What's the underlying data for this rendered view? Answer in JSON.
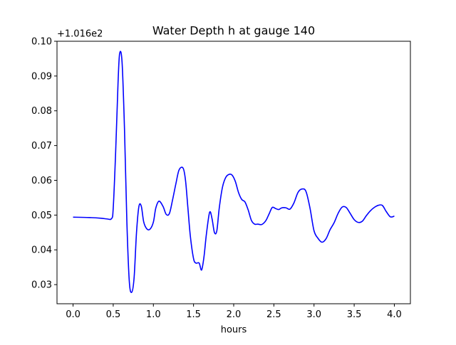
{
  "chart_data": {
    "type": "line",
    "title": "Water Depth h at gauge 140",
    "xlabel": "hours",
    "ylabel": "",
    "y_offset_label": "+1.016e2",
    "xlim": [
      -0.2,
      4.2
    ],
    "ylim": [
      0.0245,
      0.1
    ],
    "x_ticks": [
      0.0,
      0.5,
      1.0,
      1.5,
      2.0,
      2.5,
      3.0,
      3.5,
      4.0
    ],
    "x_tick_labels": [
      "0.0",
      "0.5",
      "1.0",
      "1.5",
      "2.0",
      "2.5",
      "3.0",
      "3.5",
      "4.0"
    ],
    "y_ticks": [
      0.03,
      0.04,
      0.05,
      0.06,
      0.07,
      0.08,
      0.09,
      0.1
    ],
    "y_tick_labels": [
      "0.03",
      "0.04",
      "0.05",
      "0.06",
      "0.07",
      "0.08",
      "0.09",
      "0.10"
    ],
    "grid": false,
    "legend": "none",
    "series": [
      {
        "color": "#0000ff",
        "x": [
          0.0,
          0.2,
          0.35,
          0.42,
          0.48,
          0.5,
          0.53,
          0.56,
          0.58,
          0.61,
          0.64,
          0.67,
          0.7,
          0.73,
          0.76,
          0.79,
          0.82,
          0.85,
          0.88,
          0.92,
          0.96,
          1.0,
          1.03,
          1.07,
          1.12,
          1.16,
          1.2,
          1.24,
          1.28,
          1.32,
          1.37,
          1.4,
          1.43,
          1.46,
          1.5,
          1.53,
          1.57,
          1.6,
          1.63,
          1.66,
          1.7,
          1.73,
          1.76,
          1.79,
          1.82,
          1.86,
          1.9,
          1.94,
          1.98,
          2.02,
          2.06,
          2.1,
          2.14,
          2.18,
          2.22,
          2.26,
          2.3,
          2.35,
          2.4,
          2.44,
          2.48,
          2.52,
          2.56,
          2.6,
          2.65,
          2.7,
          2.75,
          2.8,
          2.85,
          2.9,
          2.95,
          3.0,
          3.05,
          3.1,
          3.15,
          3.2,
          3.25,
          3.3,
          3.35,
          3.4,
          3.45,
          3.5,
          3.55,
          3.6,
          3.65,
          3.7,
          3.75,
          3.8,
          3.85,
          3.9,
          3.95,
          4.0
        ],
        "y": [
          0.0494,
          0.0493,
          0.0491,
          0.0489,
          0.049,
          0.052,
          0.068,
          0.088,
          0.0965,
          0.094,
          0.075,
          0.048,
          0.031,
          0.0278,
          0.032,
          0.045,
          0.0525,
          0.0525,
          0.048,
          0.046,
          0.046,
          0.048,
          0.052,
          0.054,
          0.0525,
          0.0502,
          0.0505,
          0.0545,
          0.059,
          0.063,
          0.0635,
          0.06,
          0.052,
          0.044,
          0.0375,
          0.0362,
          0.0362,
          0.0342,
          0.038,
          0.0445,
          0.0508,
          0.049,
          0.045,
          0.0455,
          0.052,
          0.058,
          0.0608,
          0.0617,
          0.0615,
          0.0597,
          0.0565,
          0.0545,
          0.0538,
          0.0515,
          0.0485,
          0.0474,
          0.0474,
          0.0473,
          0.0484,
          0.0503,
          0.0522,
          0.0519,
          0.0516,
          0.0521,
          0.0521,
          0.0517,
          0.0535,
          0.0565,
          0.0575,
          0.0568,
          0.052,
          0.0455,
          0.0433,
          0.0422,
          0.0432,
          0.0458,
          0.0478,
          0.0505,
          0.0523,
          0.0522,
          0.0505,
          0.0487,
          0.0479,
          0.0482,
          0.0498,
          0.0512,
          0.0522,
          0.0528,
          0.0528,
          0.051,
          0.0495,
          0.0497
        ]
      }
    ]
  }
}
